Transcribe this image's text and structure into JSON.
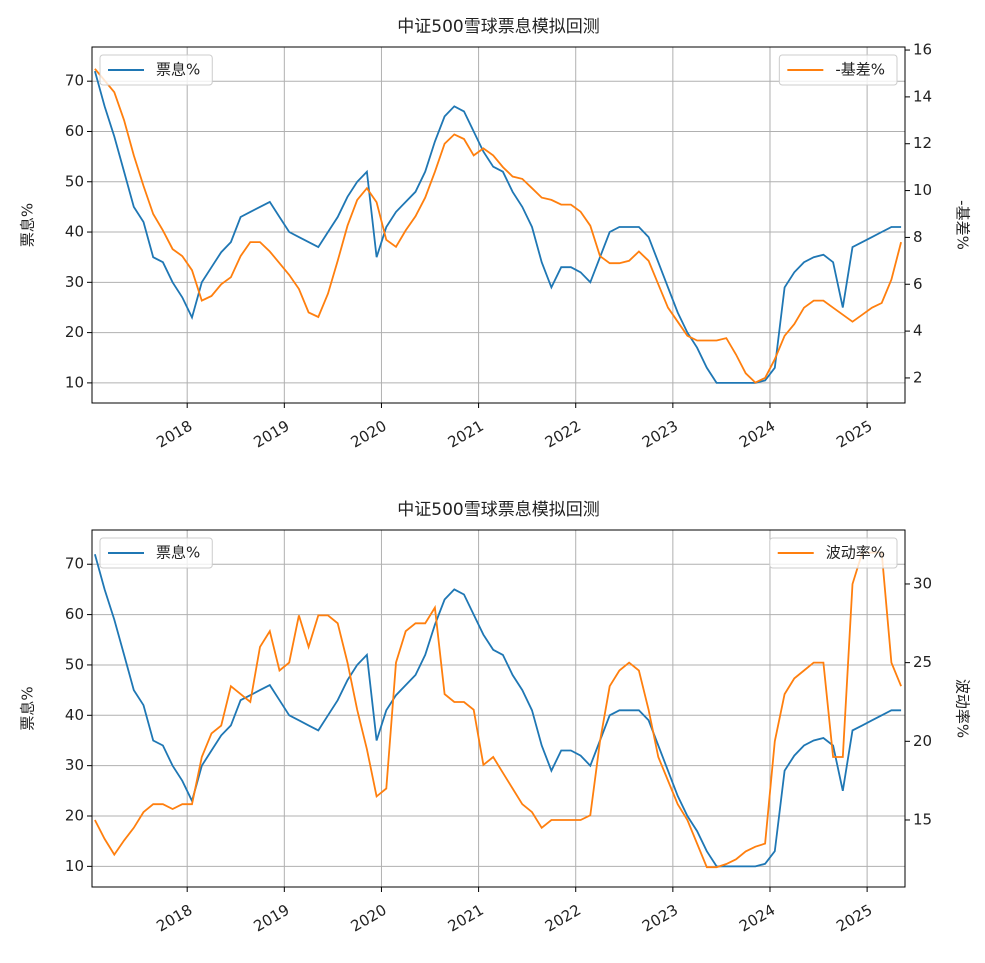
{
  "chart_data": [
    {
      "type": "line",
      "title": "中证500雪球票息模拟回测",
      "ylabel": "票息%",
      "y2label": "-基差%",
      "x": [
        2017.05,
        2017.15,
        2017.25,
        2017.35,
        2017.45,
        2017.55,
        2017.65,
        2017.75,
        2017.85,
        2017.95,
        2018.05,
        2018.15,
        2018.25,
        2018.35,
        2018.45,
        2018.55,
        2018.65,
        2018.75,
        2018.85,
        2018.95,
        2019.05,
        2019.15,
        2019.25,
        2019.35,
        2019.45,
        2019.55,
        2019.65,
        2019.75,
        2019.85,
        2019.95,
        2020.05,
        2020.15,
        2020.25,
        2020.35,
        2020.45,
        2020.55,
        2020.65,
        2020.75,
        2020.85,
        2020.95,
        2021.05,
        2021.15,
        2021.25,
        2021.35,
        2021.45,
        2021.55,
        2021.65,
        2021.75,
        2021.85,
        2021.95,
        2022.05,
        2022.15,
        2022.25,
        2022.35,
        2022.45,
        2022.55,
        2022.65,
        2022.75,
        2022.85,
        2022.95,
        2023.05,
        2023.15,
        2023.25,
        2023.35,
        2023.45,
        2023.55,
        2023.65,
        2023.75,
        2023.85,
        2023.95,
        2024.05,
        2024.15,
        2024.25,
        2024.35,
        2024.45,
        2024.55,
        2024.65,
        2024.75,
        2024.85,
        2024.95,
        2025.05,
        2025.15,
        2025.25,
        2025.35
      ],
      "series": [
        {
          "name": "票息%",
          "color": "#1f77b4",
          "legend": "upper left",
          "values": [
            72,
            65,
            59,
            52,
            45,
            42,
            35,
            34,
            30,
            27,
            23,
            30,
            33,
            36,
            38,
            43,
            44,
            45,
            46,
            43,
            40,
            39,
            38,
            37,
            40,
            43,
            47,
            50,
            52,
            35,
            41,
            44,
            46,
            48,
            52,
            58,
            63,
            65,
            64,
            60,
            56,
            53,
            52,
            48,
            45,
            41,
            34,
            29,
            33,
            33,
            32,
            30,
            35,
            40,
            41,
            41,
            41,
            39,
            34,
            29,
            24,
            20,
            17,
            13,
            10,
            10,
            10,
            10,
            10,
            10.5,
            13,
            29,
            32,
            34,
            35,
            35.5,
            34,
            25,
            37,
            38,
            39,
            40,
            41,
            41
          ]
        },
        {
          "name": "-基差%",
          "color": "#ff7f0e",
          "axis": "y2",
          "legend": "upper right",
          "values": [
            15.2,
            14.7,
            14.2,
            13.0,
            11.5,
            10.2,
            9.0,
            8.3,
            7.5,
            7.2,
            6.6,
            5.3,
            5.5,
            6.0,
            6.3,
            7.2,
            7.8,
            7.8,
            7.4,
            6.9,
            6.4,
            5.8,
            4.8,
            4.6,
            5.6,
            7.0,
            8.5,
            9.6,
            10.1,
            9.5,
            7.9,
            7.6,
            8.3,
            8.9,
            9.7,
            10.8,
            12.0,
            12.4,
            12.2,
            11.5,
            11.8,
            11.5,
            11.0,
            10.6,
            10.5,
            10.1,
            9.7,
            9.6,
            9.4,
            9.4,
            9.1,
            8.5,
            7.2,
            6.9,
            6.9,
            7.0,
            7.4,
            7.0,
            6.0,
            5.0,
            4.4,
            3.8,
            3.6,
            3.6,
            3.6,
            3.7,
            3.0,
            2.2,
            1.8,
            2.0,
            2.8,
            3.8,
            4.3,
            5.0,
            5.3,
            5.3,
            5.0,
            4.7,
            4.4,
            4.7,
            5.0,
            5.2,
            6.2,
            7.8
          ]
        }
      ],
      "xlim": [
        2017.02,
        2025.39
      ],
      "xticks": [
        2018,
        2019,
        2020,
        2021,
        2022,
        2023,
        2024,
        2025
      ],
      "ylim": [
        6,
        76.8
      ],
      "yticks": [
        10,
        20,
        30,
        40,
        50,
        60,
        70
      ],
      "y2lim": [
        0.93,
        16.13
      ],
      "y2ticks": [
        2,
        4,
        6,
        8,
        10,
        12,
        14,
        16
      ],
      "grid": true
    },
    {
      "type": "line",
      "title": "中证500雪球票息模拟回测",
      "ylabel": "票息%",
      "y2label": "波动率%",
      "x": [
        2017.05,
        2017.15,
        2017.25,
        2017.35,
        2017.45,
        2017.55,
        2017.65,
        2017.75,
        2017.85,
        2017.95,
        2018.05,
        2018.15,
        2018.25,
        2018.35,
        2018.45,
        2018.55,
        2018.65,
        2018.75,
        2018.85,
        2018.95,
        2019.05,
        2019.15,
        2019.25,
        2019.35,
        2019.45,
        2019.55,
        2019.65,
        2019.75,
        2019.85,
        2019.95,
        2020.05,
        2020.15,
        2020.25,
        2020.35,
        2020.45,
        2020.55,
        2020.65,
        2020.75,
        2020.85,
        2020.95,
        2021.05,
        2021.15,
        2021.25,
        2021.35,
        2021.45,
        2021.55,
        2021.65,
        2021.75,
        2021.85,
        2021.95,
        2022.05,
        2022.15,
        2022.25,
        2022.35,
        2022.45,
        2022.55,
        2022.65,
        2022.75,
        2022.85,
        2022.95,
        2023.05,
        2023.15,
        2023.25,
        2023.35,
        2023.45,
        2023.55,
        2023.65,
        2023.75,
        2023.85,
        2023.95,
        2024.05,
        2024.15,
        2024.25,
        2024.35,
        2024.45,
        2024.55,
        2024.65,
        2024.75,
        2024.85,
        2024.95,
        2025.05,
        2025.15,
        2025.25,
        2025.35
      ],
      "series": [
        {
          "name": "票息%",
          "color": "#1f77b4",
          "legend": "upper left",
          "values": [
            72,
            65,
            59,
            52,
            45,
            42,
            35,
            34,
            30,
            27,
            23,
            30,
            33,
            36,
            38,
            43,
            44,
            45,
            46,
            43,
            40,
            39,
            38,
            37,
            40,
            43,
            47,
            50,
            52,
            35,
            41,
            44,
            46,
            48,
            52,
            58,
            63,
            65,
            64,
            60,
            56,
            53,
            52,
            48,
            45,
            41,
            34,
            29,
            33,
            33,
            32,
            30,
            35,
            40,
            41,
            41,
            41,
            39,
            34,
            29,
            24,
            20,
            17,
            13,
            10,
            10,
            10,
            10,
            10,
            10.5,
            13,
            29,
            32,
            34,
            35,
            35.5,
            34,
            25,
            37,
            38,
            39,
            40,
            41,
            41
          ]
        },
        {
          "name": "波动率%",
          "color": "#ff7f0e",
          "axis": "y2",
          "legend": "upper right",
          "values": [
            15.0,
            13.8,
            12.8,
            13.7,
            14.5,
            15.5,
            16.0,
            16.0,
            15.7,
            16.0,
            16.0,
            19.0,
            20.5,
            21.0,
            23.5,
            23.0,
            22.5,
            26.0,
            27.0,
            24.5,
            25.0,
            28.0,
            26.0,
            28.0,
            28.0,
            27.5,
            25.0,
            22.0,
            19.5,
            16.5,
            17.0,
            25.0,
            27.0,
            27.5,
            27.5,
            28.5,
            23.0,
            22.5,
            22.5,
            22.0,
            18.5,
            19.0,
            18.0,
            17.0,
            16.0,
            15.5,
            14.5,
            15.0,
            15.0,
            15.0,
            15.0,
            15.3,
            20.0,
            23.5,
            24.5,
            25.0,
            24.5,
            22.0,
            19.0,
            17.5,
            16.0,
            15.0,
            13.5,
            12.0,
            12.0,
            12.2,
            12.5,
            13.0,
            13.3,
            13.5,
            20.0,
            23.0,
            24.0,
            24.5,
            25.0,
            25.0,
            19.0,
            19.0,
            30.0,
            32.0,
            32.0,
            32.0,
            25.0,
            23.5
          ]
        }
      ],
      "xlim": [
        2017.02,
        2025.39
      ],
      "xticks": [
        2018,
        2019,
        2020,
        2021,
        2022,
        2023,
        2024,
        2025
      ],
      "ylim": [
        5.9,
        76.8
      ],
      "yticks": [
        10,
        20,
        30,
        40,
        50,
        60,
        70
      ],
      "y2lim": [
        10.74,
        33.43
      ],
      "y2ticks": [
        15,
        20,
        25,
        30
      ],
      "grid": true
    }
  ]
}
